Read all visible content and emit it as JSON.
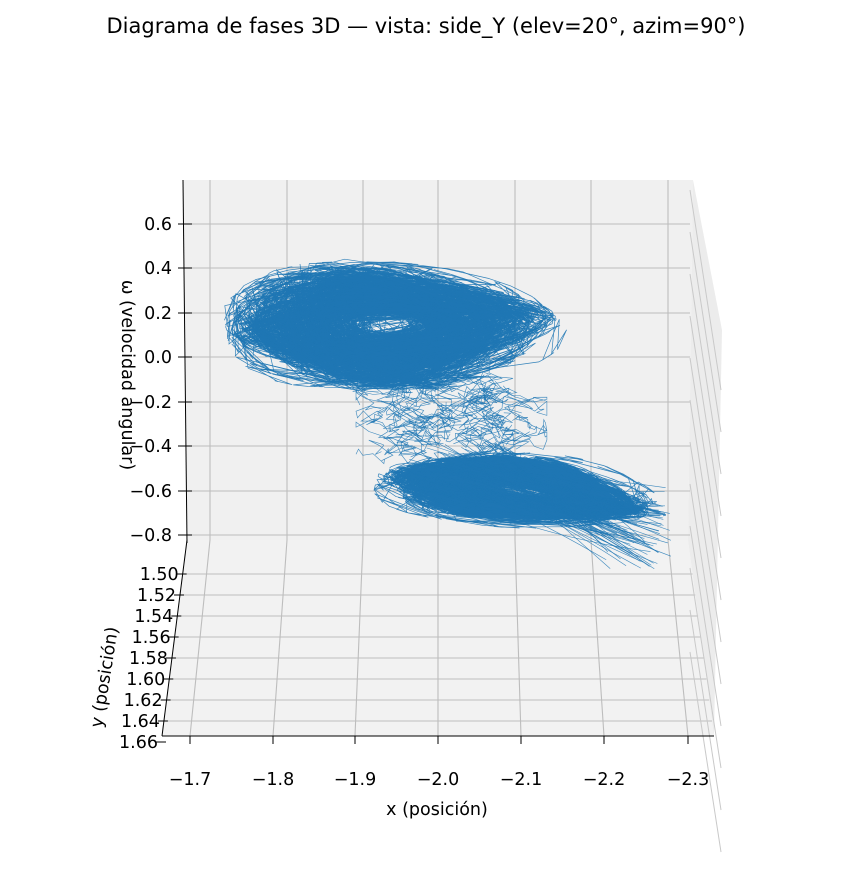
{
  "chart_data": {
    "type": "line3d",
    "title": "Diagrama de fases 3D — vista: side_Y (elev=20°, azim=90°)",
    "xlabel": "x (posición)",
    "ylabel": "y (posición)",
    "zlabel": "ω (velocidad angular)",
    "x_ticks": [
      "−1.7",
      "−1.8",
      "−1.9",
      "−2.0",
      "−2.1",
      "−2.2",
      "−2.3"
    ],
    "y_ticks": [
      "1.50",
      "1.52",
      "1.54",
      "1.56",
      "1.58",
      "1.60",
      "1.62",
      "1.64",
      "1.66"
    ],
    "z_ticks": [
      "0.6",
      "0.4",
      "0.2",
      "0.0",
      "−0.2",
      "−0.4",
      "−0.6",
      "−0.8"
    ],
    "xlim": [
      -1.68,
      -2.33
    ],
    "zlim": [
      -0.82,
      0.72
    ],
    "series_color": "#1f77b4",
    "trajectory": {
      "description": "chaotic phase-space trajectory in two lobes",
      "lobe_upper": {
        "x_center": -1.94,
        "omega_center": 0.14,
        "x_range": [
          -1.7,
          -2.1
        ],
        "omega_range": [
          -0.25,
          0.6
        ]
      },
      "lobe_lower": {
        "x_center": -2.1,
        "omega_center": -0.6,
        "x_range": [
          -1.93,
          -2.28
        ],
        "omega_range": [
          -0.88,
          -0.3
        ]
      },
      "bridge_x_range": [
        -1.93,
        -2.09
      ]
    }
  }
}
